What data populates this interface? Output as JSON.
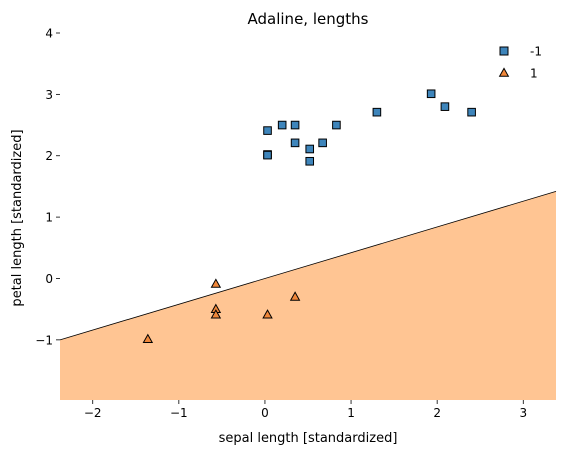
{
  "chart_data": {
    "type": "scatter",
    "title": "Adaline, lengths",
    "xlabel": "sepal length [standardized]",
    "ylabel": "petal length [standardized]",
    "xlim": [
      -2.38,
      3.38
    ],
    "ylim": [
      -1.98,
      4.0
    ],
    "xticks": [
      -2,
      -1,
      0,
      1,
      2,
      3
    ],
    "xtick_labels": [
      "−2",
      "−1",
      "0",
      "1",
      "2",
      "3"
    ],
    "yticks": [
      -1,
      0,
      1,
      2,
      3,
      4
    ],
    "ytick_labels": [
      "−1",
      "0",
      "1",
      "2",
      "3",
      "4"
    ],
    "decision_boundary": {
      "slope": 0.42,
      "intercept": 0.0
    },
    "region_color": "#ffc593",
    "legend_position": "top-right",
    "series": [
      {
        "name": "-1",
        "marker": "square",
        "color": "#3e85bb",
        "points": [
          [
            0.03,
            2.41
          ],
          [
            0.03,
            2.02
          ],
          [
            0.03,
            2.01
          ],
          [
            0.2,
            2.5
          ],
          [
            0.35,
            2.5
          ],
          [
            0.35,
            2.21
          ],
          [
            0.52,
            2.11
          ],
          [
            0.52,
            1.91
          ],
          [
            0.67,
            2.21
          ],
          [
            0.83,
            2.5
          ],
          [
            1.3,
            2.71
          ],
          [
            1.93,
            3.01
          ],
          [
            2.09,
            2.8
          ],
          [
            2.4,
            2.71
          ]
        ]
      },
      {
        "name": "1",
        "marker": "triangle",
        "color": "#f0873a",
        "points": [
          [
            -0.57,
            -0.09
          ],
          [
            -0.57,
            -0.5
          ],
          [
            -0.57,
            -0.59
          ],
          [
            -1.36,
            -0.99
          ],
          [
            0.03,
            -0.59
          ],
          [
            0.35,
            -0.3
          ]
        ]
      }
    ]
  }
}
